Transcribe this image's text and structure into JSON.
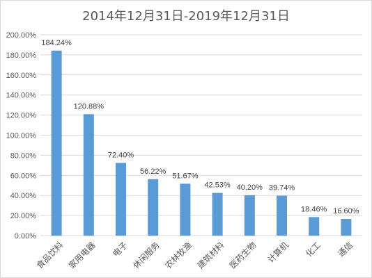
{
  "chart_data": {
    "type": "bar",
    "title": "2014年12月31日-2019年12月31日",
    "xlabel": "",
    "ylabel": "",
    "categories": [
      "食品饮料",
      "家用电器",
      "电子",
      "休闲服务",
      "农林牧渔",
      "建筑材料",
      "医药生物",
      "计算机",
      "化工",
      "通信"
    ],
    "values": [
      184.24,
      120.88,
      72.4,
      56.22,
      51.67,
      42.53,
      40.2,
      39.74,
      18.46,
      16.6
    ],
    "data_labels": [
      "184.24%",
      "120.88%",
      "72.40%",
      "56.22%",
      "51.67%",
      "42.53%",
      "40.20%",
      "39.74%",
      "18.46%",
      "16.60%"
    ],
    "ylim": [
      0,
      200
    ],
    "yticks": [
      0,
      20,
      40,
      60,
      80,
      100,
      120,
      140,
      160,
      180,
      200
    ],
    "ytick_labels": [
      "0.00%",
      "20.00%",
      "40.00%",
      "60.00%",
      "80.00%",
      "100.00%",
      "120.00%",
      "140.00%",
      "160.00%",
      "180.00%",
      "200.00%"
    ],
    "grid": true,
    "legend": "none",
    "bar_color": "#5b9bd5",
    "grid_color": "#d9d9d9"
  }
}
